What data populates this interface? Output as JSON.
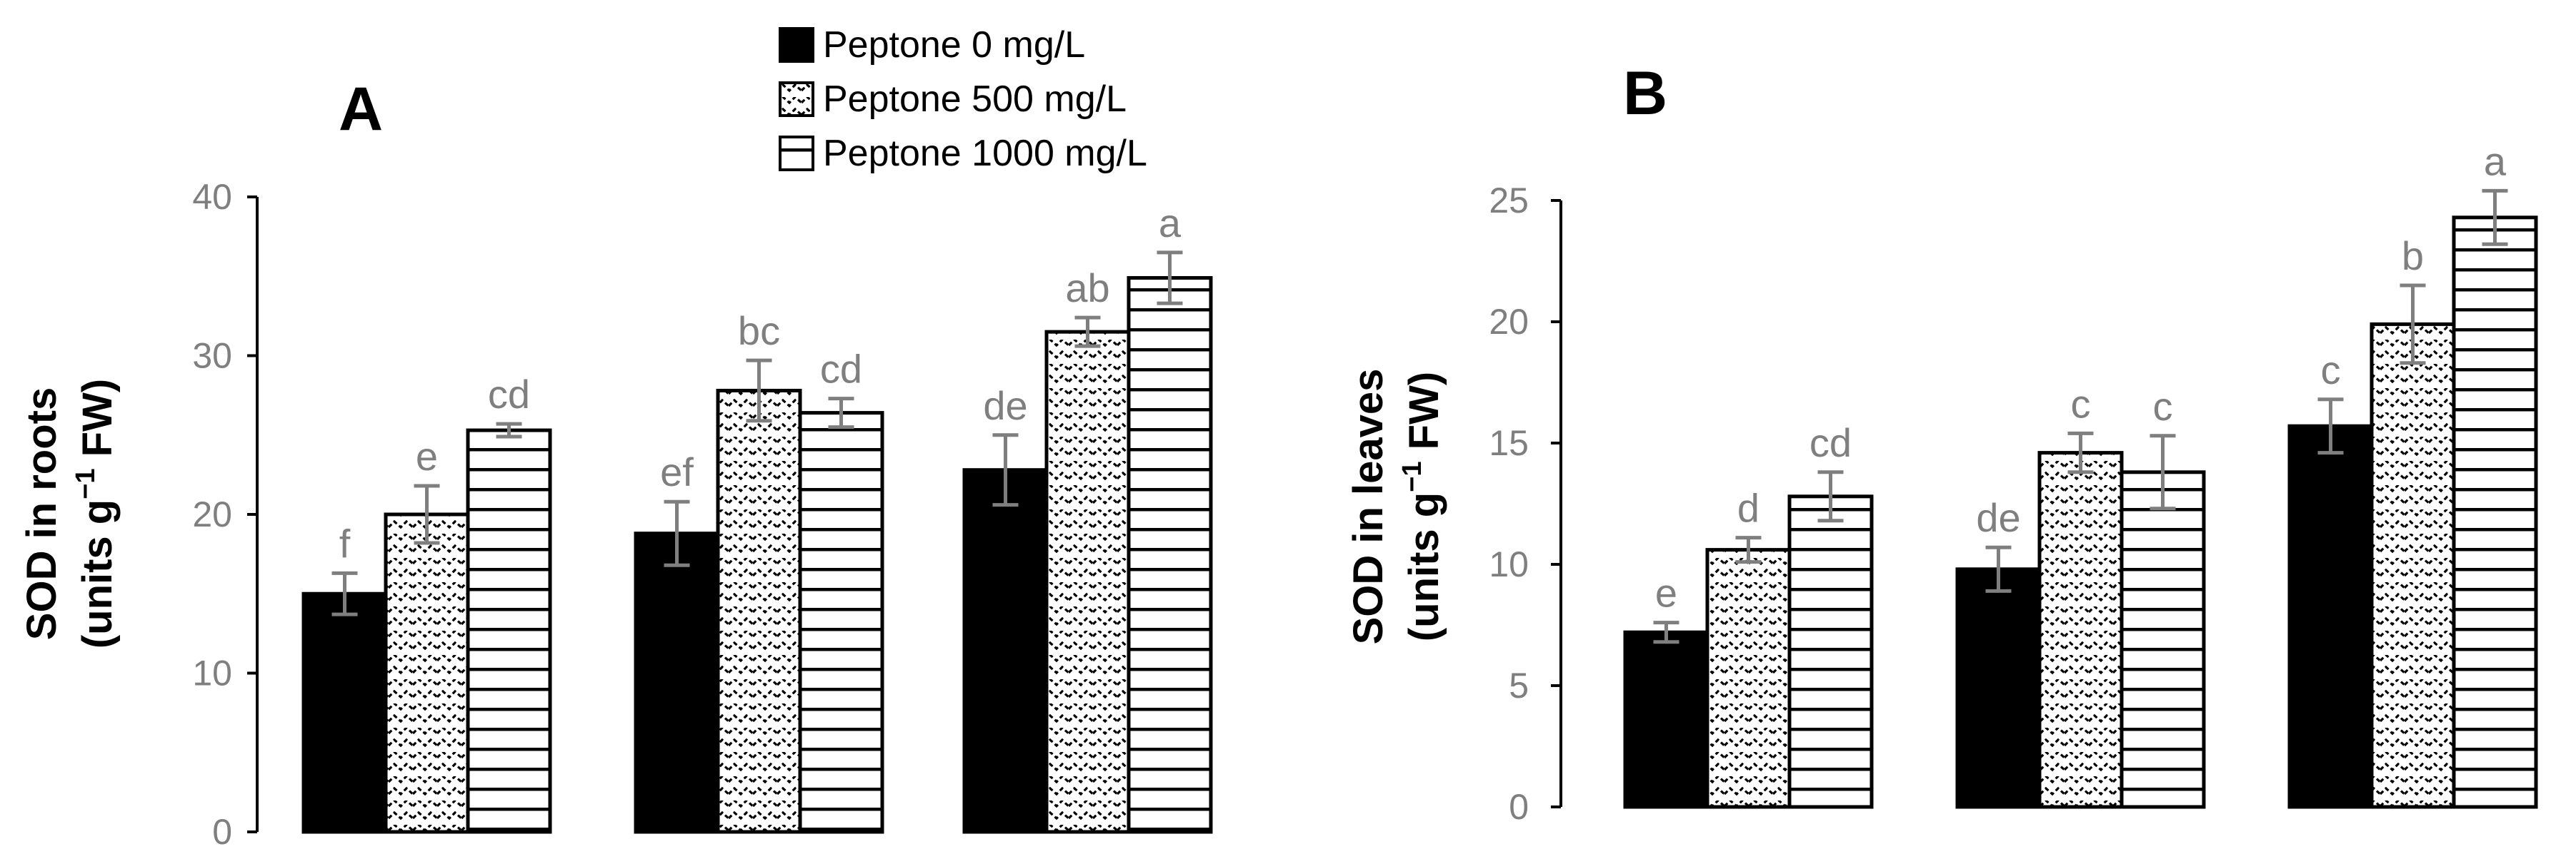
{
  "legend": {
    "entries": [
      {
        "label": "Peptone 0 mg/L",
        "pattern": "solid"
      },
      {
        "label": "Peptone 500 mg/L",
        "pattern": "zigzag"
      },
      {
        "label": "Peptone 1000 mg/L",
        "pattern": "horizontal"
      }
    ]
  },
  "chart_data": [
    {
      "type": "bar",
      "panel": "A",
      "title": "A",
      "ylabel_line1": "SOD in roots",
      "ylabel_line2_parts": [
        "(units g",
        "−1",
        " FW)"
      ],
      "ylim": [
        0,
        40
      ],
      "yticks": [
        0,
        10,
        20,
        30,
        40
      ],
      "categories": [
        "",
        "",
        ""
      ],
      "series": [
        {
          "name": "Peptone 0 mg/L",
          "values": [
            15.0,
            18.8,
            22.8
          ],
          "errors": [
            1.3,
            2.0,
            2.2
          ],
          "labels": [
            "f",
            "ef",
            "de"
          ]
        },
        {
          "name": "Peptone 500 mg/L",
          "values": [
            20.0,
            27.8,
            31.5
          ],
          "errors": [
            1.8,
            1.9,
            0.9
          ],
          "labels": [
            "e",
            "bc",
            "ab"
          ]
        },
        {
          "name": "Peptone 1000 mg/L",
          "values": [
            25.3,
            26.4,
            34.9
          ],
          "errors": [
            0.4,
            0.9,
            1.6
          ],
          "labels": [
            "cd",
            "cd",
            "a"
          ]
        }
      ]
    },
    {
      "type": "bar",
      "panel": "B",
      "title": "B",
      "ylabel_line1": "SOD in leaves",
      "ylabel_line2_parts": [
        "(units g",
        "−1",
        " FW)"
      ],
      "ylim": [
        0,
        25
      ],
      "yticks": [
        0,
        5,
        10,
        15,
        20,
        25
      ],
      "categories": [
        "",
        "",
        ""
      ],
      "series": [
        {
          "name": "Peptone 0 mg/L",
          "values": [
            7.2,
            9.8,
            15.7
          ],
          "errors": [
            0.4,
            0.9,
            1.1
          ],
          "labels": [
            "e",
            "de",
            "c"
          ]
        },
        {
          "name": "Peptone 500 mg/L",
          "values": [
            10.6,
            14.6,
            19.9
          ],
          "errors": [
            0.5,
            0.8,
            1.6
          ],
          "labels": [
            "d",
            "c",
            "b"
          ]
        },
        {
          "name": "Peptone 1000 mg/L",
          "values": [
            12.8,
            13.8,
            24.3
          ],
          "errors": [
            1.0,
            1.5,
            1.1
          ],
          "labels": [
            "cd",
            "c",
            "a"
          ]
        }
      ]
    }
  ]
}
